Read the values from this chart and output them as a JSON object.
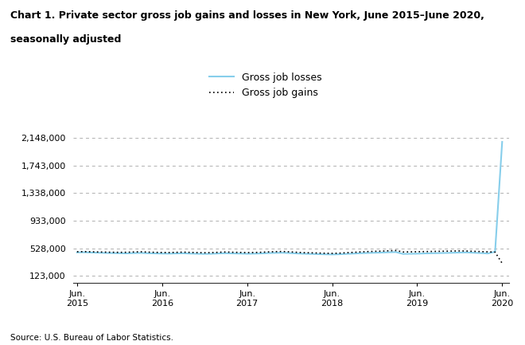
{
  "title_line1": "Chart 1. Private sector gross job gains and losses in New York, June 2015–June 2020,",
  "title_line2": "seasonally adjusted",
  "source": "Source: U.S. Bureau of Labor Statistics.",
  "legend_losses": "Gross job losses",
  "legend_gains": "Gross job gains",
  "yticks": [
    123000,
    528000,
    933000,
    1338000,
    1743000,
    2148000
  ],
  "ytick_labels": [
    "123,000",
    "528,000",
    "933,000",
    "1,338,000",
    "1,743,000",
    "2,148,000"
  ],
  "ylim": [
    23000,
    2248000
  ],
  "xtick_labels": [
    "Jun.\n2015",
    "Jun.\n2016",
    "Jun.\n2017",
    "Jun.\n2018",
    "Jun.\n2019",
    "Jun.\n2020"
  ],
  "losses_color": "#87CEEB",
  "gains_color": "#000000",
  "background_color": "#ffffff",
  "gross_job_losses": [
    470000,
    472000,
    468000,
    465000,
    462000,
    460000,
    458000,
    456000,
    460000,
    462000,
    458000,
    455000,
    453000,
    452000,
    455000,
    457000,
    453000,
    450000,
    448000,
    450000,
    455000,
    458000,
    455000,
    453000,
    450000,
    452000,
    455000,
    460000,
    463000,
    465000,
    460000,
    455000,
    450000,
    448000,
    445000,
    442000,
    440000,
    443000,
    448000,
    453000,
    458000,
    462000,
    465000,
    468000,
    472000,
    475000,
    448000,
    450000,
    452000,
    455000,
    458000,
    460000,
    462000,
    465000,
    468000,
    470000,
    465000,
    460000,
    455000,
    480000,
    2090000
  ],
  "gross_job_gains": [
    480000,
    482000,
    479000,
    476000,
    474000,
    472000,
    471000,
    472000,
    476000,
    479000,
    474000,
    471000,
    469000,
    468000,
    471000,
    474000,
    470000,
    467000,
    465000,
    467000,
    472000,
    476000,
    472000,
    470000,
    467000,
    469000,
    472000,
    477000,
    481000,
    484000,
    478000,
    472000,
    466000,
    464000,
    461000,
    458000,
    456000,
    459000,
    465000,
    471000,
    477000,
    482000,
    486000,
    489000,
    494000,
    498000,
    476000,
    478000,
    480000,
    482000,
    484000,
    486000,
    488000,
    490000,
    492000,
    490000,
    486000,
    482000,
    478000,
    474000,
    310000
  ]
}
